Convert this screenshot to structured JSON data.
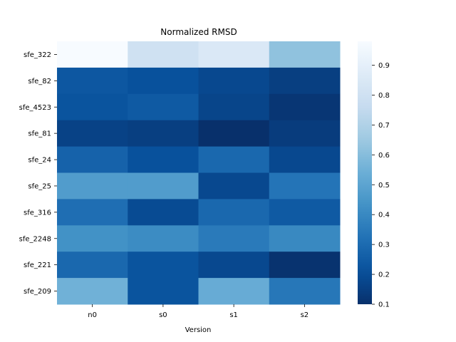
{
  "chart_data": {
    "type": "heatmap",
    "title": "Normalized RMSD",
    "xlabel": "Version",
    "ylabel": "",
    "x_categories": [
      "n0",
      "s0",
      "s1",
      "s2"
    ],
    "y_categories": [
      "sfe_322",
      "sfe_82",
      "sfe_4523",
      "sfe_81",
      "sfe_24",
      "sfe_25",
      "sfe_316",
      "sfe_2248",
      "sfe_221",
      "sfe_209"
    ],
    "values": [
      [
        0.98,
        0.8,
        0.85,
        0.62
      ],
      [
        0.23,
        0.21,
        0.18,
        0.15
      ],
      [
        0.22,
        0.24,
        0.17,
        0.12
      ],
      [
        0.16,
        0.15,
        0.1,
        0.14
      ],
      [
        0.27,
        0.21,
        0.29,
        0.18
      ],
      [
        0.47,
        0.47,
        0.18,
        0.33
      ],
      [
        0.31,
        0.19,
        0.29,
        0.24
      ],
      [
        0.43,
        0.41,
        0.35,
        0.4
      ],
      [
        0.29,
        0.22,
        0.18,
        0.11
      ],
      [
        0.55,
        0.22,
        0.53,
        0.34
      ]
    ],
    "colorbar": {
      "colormap": "Blues_r",
      "vmin": 0.1,
      "vmax": 0.98,
      "ticks": [
        "0.1",
        "0.2",
        "0.3",
        "0.4",
        "0.5",
        "0.6",
        "0.7",
        "0.8",
        "0.9"
      ]
    }
  }
}
